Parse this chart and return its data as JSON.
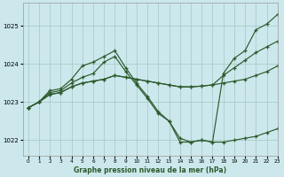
{
  "title": "Graphe pression niveau de la mer (hPa)",
  "background_color": "#cce8ec",
  "grid_color": "#aacccc",
  "line_color": "#2d5a2d",
  "xlim": [
    -0.5,
    23
  ],
  "ylim": [
    1021.6,
    1025.6
  ],
  "yticks": [
    1022,
    1023,
    1024,
    1025
  ],
  "xticks": [
    0,
    1,
    2,
    3,
    4,
    5,
    6,
    7,
    8,
    9,
    10,
    11,
    12,
    13,
    14,
    15,
    16,
    17,
    18,
    19,
    20,
    21,
    22,
    23
  ],
  "lines": [
    {
      "x": [
        0,
        1,
        2,
        3,
        4,
        5,
        6,
        7,
        8,
        9,
        10,
        11,
        12,
        13,
        14,
        15,
        16,
        17,
        18,
        19,
        20,
        21,
        22,
        23
      ],
      "y": [
        1022.85,
        1023.0,
        1023.3,
        1023.35,
        1023.6,
        1023.95,
        1024.05,
        1024.2,
        1024.35,
        1023.9,
        1023.5,
        1023.15,
        1022.75,
        1022.5,
        1022.05,
        1021.95,
        1022.0,
        1021.95,
        1023.75,
        1024.15,
        1024.35,
        1024.9,
        1025.05,
        1025.3
      ]
    },
    {
      "x": [
        0,
        1,
        2,
        3,
        4,
        5,
        6,
        7,
        8,
        9,
        10,
        11,
        12,
        13,
        14,
        15,
        16,
        17,
        18,
        19,
        20,
        21,
        22,
        23
      ],
      "y": [
        1022.85,
        1023.0,
        1023.25,
        1023.3,
        1023.5,
        1023.65,
        1023.75,
        1024.05,
        1024.2,
        1023.8,
        1023.45,
        1023.1,
        1022.7,
        1022.5,
        1021.95,
        1021.95,
        1022.0,
        1021.95,
        1021.95,
        1022.0,
        1022.05,
        1022.1,
        1022.2,
        1022.3
      ]
    },
    {
      "x": [
        0,
        1,
        2,
        3,
        4,
        5,
        6,
        7,
        8,
        9,
        10,
        11,
        12,
        13,
        14,
        15,
        16,
        17,
        18,
        19,
        20,
        21,
        22,
        23
      ],
      "y": [
        1022.85,
        1023.0,
        1023.2,
        1023.25,
        1023.4,
        1023.5,
        1023.55,
        1023.6,
        1023.7,
        1023.65,
        1023.6,
        1023.55,
        1023.5,
        1023.45,
        1023.4,
        1023.4,
        1023.42,
        1023.45,
        1023.5,
        1023.55,
        1023.6,
        1023.7,
        1023.8,
        1023.95
      ]
    },
    {
      "x": [
        0,
        1,
        2,
        3,
        4,
        5,
        6,
        7,
        8,
        9,
        10,
        11,
        12,
        13,
        14,
        15,
        16,
        17,
        18,
        19,
        20,
        21,
        22,
        23
      ],
      "y": [
        1022.85,
        1023.0,
        1023.2,
        1023.25,
        1023.4,
        1023.5,
        1023.55,
        1023.6,
        1023.7,
        1023.65,
        1023.6,
        1023.55,
        1023.5,
        1023.45,
        1023.4,
        1023.4,
        1023.42,
        1023.45,
        1023.7,
        1023.9,
        1024.1,
        1024.3,
        1024.45,
        1024.6
      ]
    }
  ]
}
